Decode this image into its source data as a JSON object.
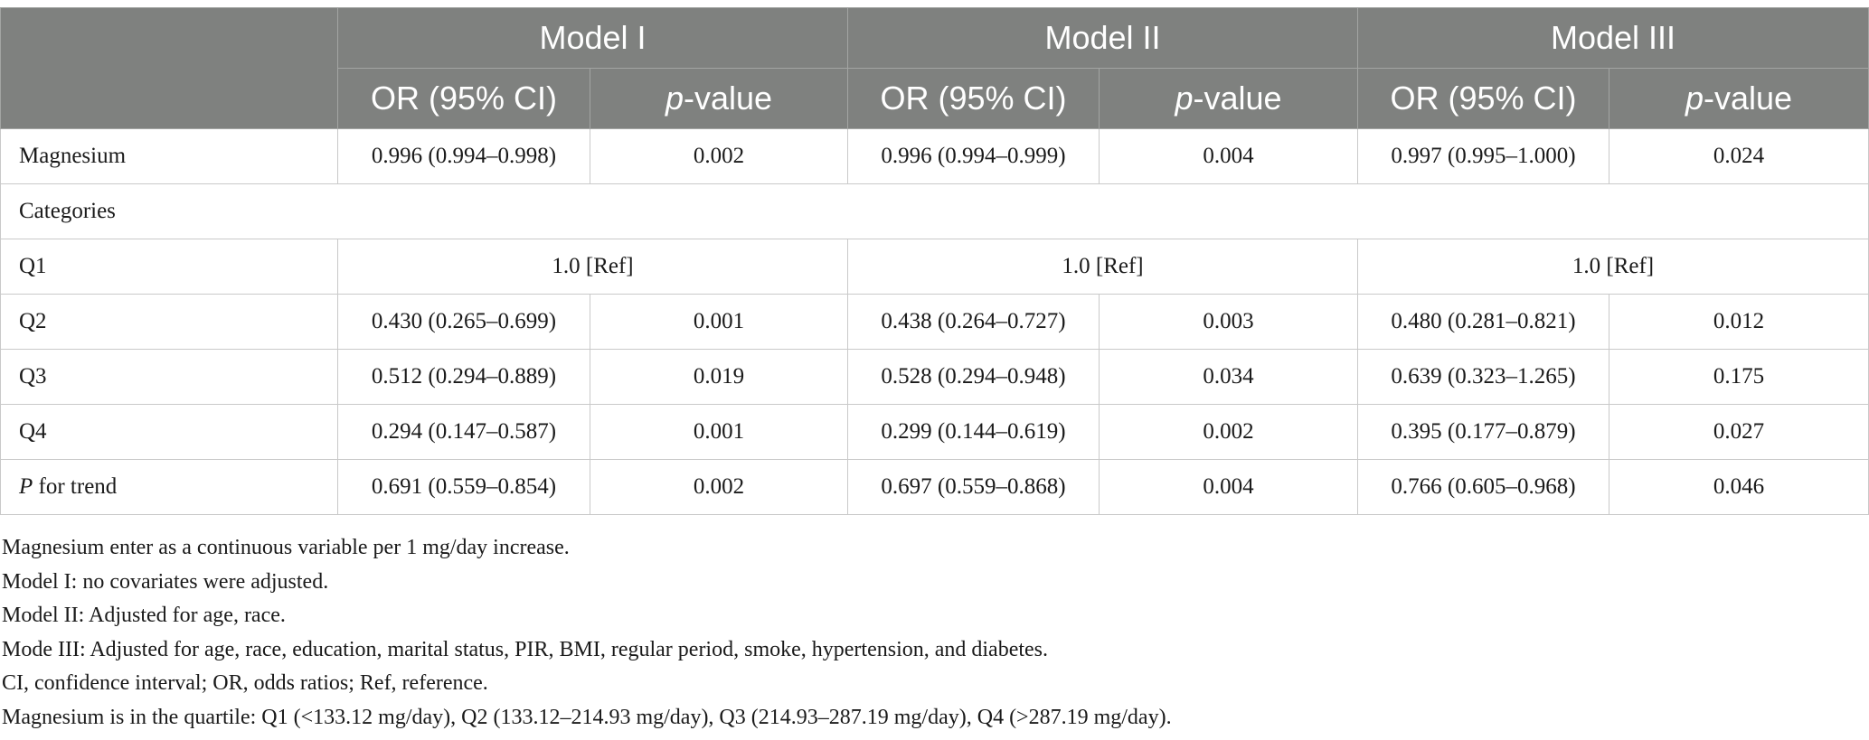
{
  "table": {
    "header": {
      "models": [
        "Model I",
        "Model II",
        "Model III"
      ],
      "or_label": "OR (95% CI)",
      "p_prefix": "p",
      "p_suffix": "-value"
    },
    "rows": {
      "magnesium": {
        "label": "Magnesium",
        "m1_or": "0.996 (0.994–0.998)",
        "m1_p": "0.002",
        "m2_or": "0.996 (0.994–0.999)",
        "m2_p": "0.004",
        "m3_or": "0.997 (0.995–1.000)",
        "m3_p": "0.024"
      },
      "categories": {
        "label": "Categories"
      },
      "q1": {
        "label": "Q1",
        "m1": "1.0 [Ref]",
        "m2": "1.0 [Ref]",
        "m3": "1.0 [Ref]"
      },
      "q2": {
        "label": "Q2",
        "m1_or": "0.430 (0.265–0.699)",
        "m1_p": "0.001",
        "m2_or": "0.438 (0.264–0.727)",
        "m2_p": "0.003",
        "m3_or": "0.480 (0.281–0.821)",
        "m3_p": "0.012"
      },
      "q3": {
        "label": "Q3",
        "m1_or": "0.512 (0.294–0.889)",
        "m1_p": "0.019",
        "m2_or": "0.528 (0.294–0.948)",
        "m2_p": "0.034",
        "m3_or": "0.639 (0.323–1.265)",
        "m3_p": "0.175"
      },
      "q4": {
        "label": "Q4",
        "m1_or": "0.294 (0.147–0.587)",
        "m1_p": "0.001",
        "m2_or": "0.299 (0.144–0.619)",
        "m2_p": "0.002",
        "m3_or": "0.395 (0.177–0.879)",
        "m3_p": "0.027"
      },
      "trend": {
        "label_prefix": "P",
        "label_suffix": " for trend",
        "m1_or": "0.691 (0.559–0.854)",
        "m1_p": "0.002",
        "m2_or": "0.697 (0.559–0.868)",
        "m2_p": "0.004",
        "m3_or": "0.766 (0.605–0.968)",
        "m3_p": "0.046"
      }
    }
  },
  "notes": [
    "Magnesium enter as a continuous variable per 1 mg/day increase.",
    "Model I: no covariates were adjusted.",
    "Model II: Adjusted for age, race.",
    "Mode III: Adjusted for age, race, education, marital status, PIR, BMI, regular period, smoke, hypertension, and diabetes.",
    "CI, confidence interval; OR, odds ratios; Ref, reference.",
    "Magnesium is in the quartile: Q1 (<133.12 mg/day), Q2 (133.12–214.93 mg/day), Q3 (214.93–287.19 mg/day), Q4 (>287.19 mg/day)."
  ],
  "colors": {
    "header_bg": "#7f817f",
    "header_text": "#ffffff",
    "grid": "#c9c9c9"
  }
}
